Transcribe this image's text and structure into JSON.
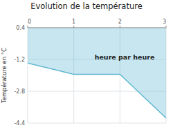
{
  "chart_data": {
    "type": "line",
    "title": "Evolution de la température",
    "ylabel": "Température en °C",
    "x": [
      0,
      1,
      2,
      3
    ],
    "values": [
      -1.38,
      -1.95,
      -1.95,
      -4.15
    ],
    "color": "#60b8d0",
    "xlim": [
      0,
      3
    ],
    "ylim": [
      -4.4,
      0.4
    ],
    "xticks": [
      0,
      1,
      2,
      3
    ],
    "yticks": [
      0.4,
      -1.2,
      -2.8,
      -4.4
    ],
    "grid": true,
    "annotations": [
      {
        "text": "heure par heure",
        "x": 1.45,
        "y": -0.9
      }
    ]
  }
}
